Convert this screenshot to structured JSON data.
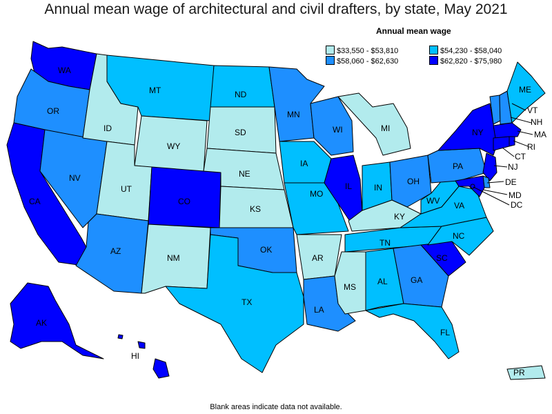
{
  "title": "Annual mean wage of architectural and civil drafters, by state, May 2021",
  "legend": {
    "title": "Annual mean wage",
    "items": [
      {
        "label": "$33,550 - $53,810",
        "color": "#b2ebed"
      },
      {
        "label": "$54,230 - $58,040",
        "color": "#00bfff"
      },
      {
        "label": "$58,060 - $62,630",
        "color": "#1e8fff"
      },
      {
        "label": "$62,820 - $75,980",
        "color": "#0000ff"
      }
    ]
  },
  "footnote": "Blank areas indicate data not available.",
  "colors": {
    "tier1": "#b2ebed",
    "tier2": "#00bfff",
    "tier3": "#1e8fff",
    "tier4": "#0000ff"
  },
  "states": {
    "WA": {
      "label": "WA",
      "tier": 4
    },
    "OR": {
      "label": "OR",
      "tier": 3
    },
    "CA": {
      "label": "CA",
      "tier": 4
    },
    "ID": {
      "label": "ID",
      "tier": 1
    },
    "NV": {
      "label": "NV",
      "tier": 3
    },
    "MT": {
      "label": "MT",
      "tier": 2
    },
    "WY": {
      "label": "WY",
      "tier": 1
    },
    "UT": {
      "label": "UT",
      "tier": 1
    },
    "AZ": {
      "label": "AZ",
      "tier": 3
    },
    "CO": {
      "label": "CO",
      "tier": 4
    },
    "NM": {
      "label": "NM",
      "tier": 1
    },
    "ND": {
      "label": "ND",
      "tier": 2
    },
    "SD": {
      "label": "SD",
      "tier": 1
    },
    "NE": {
      "label": "NE",
      "tier": 1
    },
    "KS": {
      "label": "KS",
      "tier": 1
    },
    "OK": {
      "label": "OK",
      "tier": 3
    },
    "TX": {
      "label": "TX",
      "tier": 2
    },
    "MN": {
      "label": "MN",
      "tier": 3
    },
    "IA": {
      "label": "IA",
      "tier": 2
    },
    "MO": {
      "label": "MO",
      "tier": 2
    },
    "AR": {
      "label": "AR",
      "tier": 1
    },
    "LA": {
      "label": "LA",
      "tier": 3
    },
    "WI": {
      "label": "WI",
      "tier": 3
    },
    "IL": {
      "label": "IL",
      "tier": 4
    },
    "MI": {
      "label": "MI",
      "tier": 1
    },
    "IN": {
      "label": "IN",
      "tier": 2
    },
    "OH": {
      "label": "OH",
      "tier": 3
    },
    "KY": {
      "label": "KY",
      "tier": 1
    },
    "TN": {
      "label": "TN",
      "tier": 2
    },
    "MS": {
      "label": "MS",
      "tier": 1
    },
    "AL": {
      "label": "AL",
      "tier": 2
    },
    "GA": {
      "label": "GA",
      "tier": 3
    },
    "FL": {
      "label": "FL",
      "tier": 2
    },
    "SC": {
      "label": "SC",
      "tier": 4
    },
    "NC": {
      "label": "NC",
      "tier": 2
    },
    "VA": {
      "label": "VA",
      "tier": 2
    },
    "WV": {
      "label": "WV",
      "tier": 2
    },
    "PA": {
      "label": "PA",
      "tier": 3
    },
    "NY": {
      "label": "NY",
      "tier": 4
    },
    "ME": {
      "label": "ME",
      "tier": 2
    },
    "VT": {
      "label": "VT",
      "tier": 3
    },
    "NH": {
      "label": "NH",
      "tier": 3
    },
    "MA": {
      "label": "MA",
      "tier": 4
    },
    "RI": {
      "label": "RI",
      "tier": 4
    },
    "CT": {
      "label": "CT",
      "tier": 4
    },
    "NJ": {
      "label": "NJ",
      "tier": 4
    },
    "DE": {
      "label": "DE",
      "tier": 3
    },
    "MD": {
      "label": "MD",
      "tier": 4
    },
    "DC": {
      "label": "DC",
      "tier": 4
    },
    "AK": {
      "label": "AK",
      "tier": 4
    },
    "HI": {
      "label": "HI",
      "tier": 4
    },
    "PR": {
      "label": "PR",
      "tier": 1
    }
  }
}
